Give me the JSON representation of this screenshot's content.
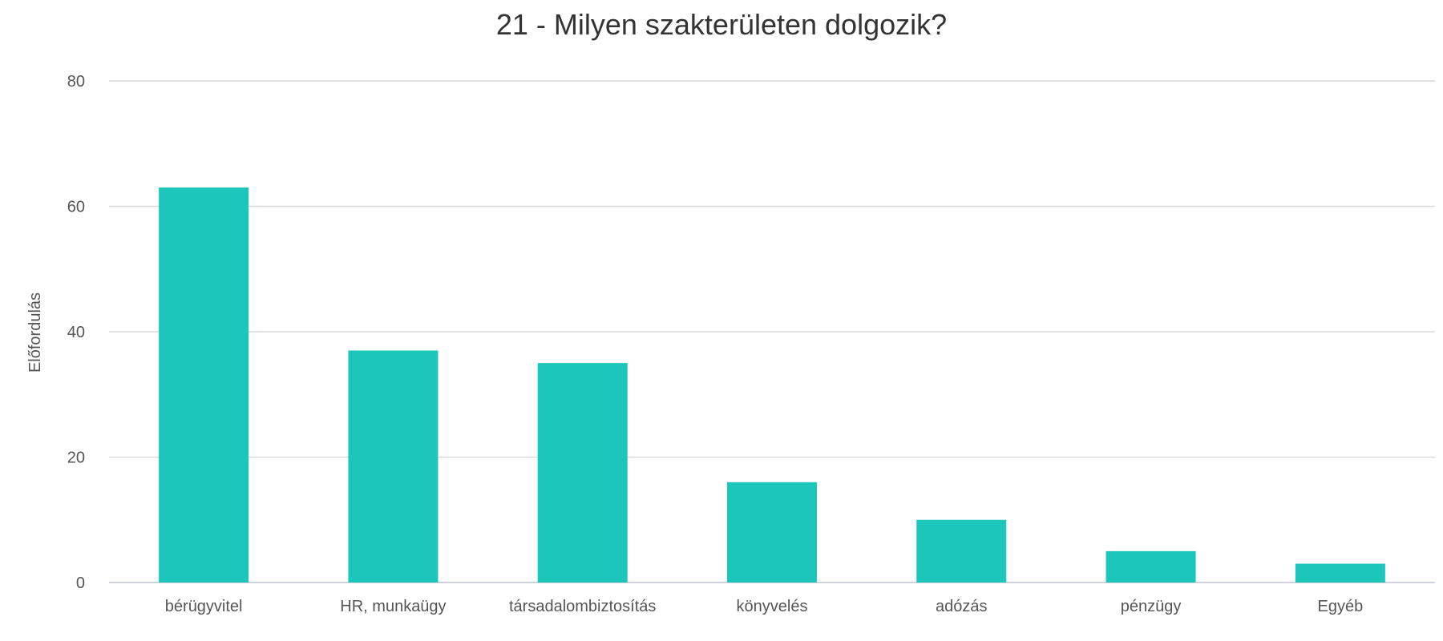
{
  "chart_data": {
    "type": "bar",
    "title": "21 - Milyen szakterületen dolgozik?",
    "xlabel": "",
    "ylabel": "Előfordulás",
    "categories": [
      "bérügyvitel",
      "HR, munkaügy",
      "társadalombiztosítás",
      "könyvelés",
      "adózás",
      "pénzügy",
      "Egyéb"
    ],
    "values": [
      63,
      37,
      35,
      16,
      10,
      5,
      3
    ],
    "ylim": [
      0,
      80
    ],
    "yticks": [
      0,
      20,
      40,
      60,
      80
    ],
    "grid": true,
    "bar_color": "#1dc6ba"
  }
}
